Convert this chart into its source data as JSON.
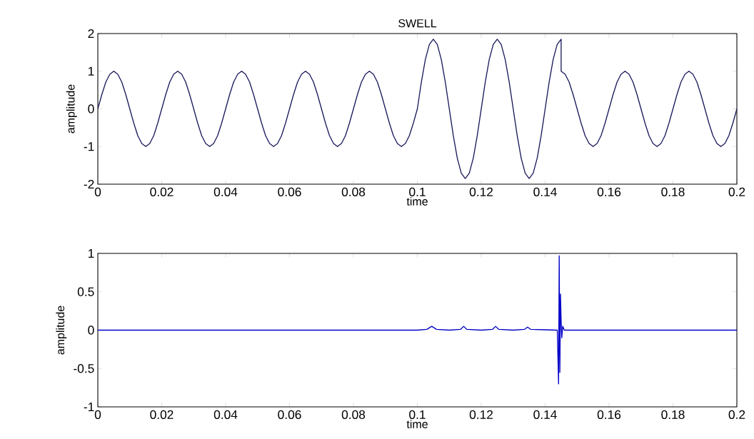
{
  "chart_data": [
    {
      "type": "line",
      "title": "SWELL",
      "xlabel": "time",
      "ylabel": "amplitude",
      "color": "#1a1a5c",
      "xlim": [
        0,
        0.2
      ],
      "ylim": [
        -2,
        2
      ],
      "xticks": [
        0,
        0.02,
        0.04,
        0.06,
        0.08,
        0.1,
        0.12,
        0.14,
        0.16,
        0.18,
        0.2
      ],
      "yticks": [
        -2,
        -1,
        0,
        1,
        2
      ],
      "x": [
        0,
        0.00125,
        0.0025,
        0.00375,
        0.005,
        0.00625,
        0.0075,
        0.00875,
        0.01,
        0.01125,
        0.0125,
        0.01375,
        0.015,
        0.01625,
        0.0175,
        0.01875,
        0.02,
        0.02125,
        0.0225,
        0.02375,
        0.025,
        0.02625,
        0.0275,
        0.02875,
        0.03,
        0.03125,
        0.0325,
        0.03375,
        0.035,
        0.03625,
        0.0375,
        0.03875,
        0.04,
        0.04125,
        0.0425,
        0.04375,
        0.045,
        0.04625,
        0.0475,
        0.04875,
        0.05,
        0.05125,
        0.0525,
        0.05375,
        0.055,
        0.05625,
        0.0575,
        0.05875,
        0.06,
        0.06125,
        0.0625,
        0.06375,
        0.065,
        0.06625,
        0.0675,
        0.06875,
        0.07,
        0.07125,
        0.0725,
        0.07375,
        0.075,
        0.07625,
        0.0775,
        0.07875,
        0.08,
        0.08125,
        0.0825,
        0.08375,
        0.085,
        0.08625,
        0.0875,
        0.08875,
        0.09,
        0.09125,
        0.0925,
        0.09375,
        0.095,
        0.09625,
        0.0975,
        0.09875,
        0.1,
        0.10125,
        0.1025,
        0.10375,
        0.105,
        0.10625,
        0.1075,
        0.10875,
        0.11,
        0.11125,
        0.1125,
        0.11375,
        0.115,
        0.11625,
        0.1175,
        0.11875,
        0.12,
        0.12125,
        0.1225,
        0.12375,
        0.125,
        0.12625,
        0.1275,
        0.12875,
        0.13,
        0.13125,
        0.1325,
        0.13375,
        0.135,
        0.13625,
        0.1375,
        0.13875,
        0.14,
        0.14125,
        0.1425,
        0.14375,
        0.145,
        0.145,
        0.14625,
        0.1475,
        0.14875,
        0.15,
        0.15125,
        0.1525,
        0.15375,
        0.155,
        0.15625,
        0.1575,
        0.15875,
        0.16,
        0.16125,
        0.1625,
        0.16375,
        0.165,
        0.16625,
        0.1675,
        0.16875,
        0.17,
        0.17125,
        0.1725,
        0.17375,
        0.175,
        0.17625,
        0.1775,
        0.17875,
        0.18,
        0.18125,
        0.1825,
        0.18375,
        0.185,
        0.18625,
        0.1875,
        0.18875,
        0.19,
        0.19125,
        0.1925,
        0.19375,
        0.195,
        0.19625,
        0.1975,
        0.19875,
        0.2
      ],
      "values": [
        0,
        0.38,
        0.71,
        0.92,
        1,
        0.92,
        0.71,
        0.38,
        0,
        -0.38,
        -0.71,
        -0.92,
        -1,
        -0.92,
        -0.71,
        -0.38,
        0,
        0.38,
        0.71,
        0.92,
        1,
        0.92,
        0.71,
        0.38,
        0,
        -0.38,
        -0.71,
        -0.92,
        -1,
        -0.92,
        -0.71,
        -0.38,
        0,
        0.38,
        0.71,
        0.92,
        1,
        0.92,
        0.71,
        0.38,
        0,
        -0.38,
        -0.71,
        -0.92,
        -1,
        -0.92,
        -0.71,
        -0.38,
        0,
        0.38,
        0.71,
        0.92,
        1,
        0.92,
        0.71,
        0.38,
        0,
        -0.38,
        -0.71,
        -0.92,
        -1,
        -0.92,
        -0.71,
        -0.38,
        0,
        0.38,
        0.71,
        0.92,
        1,
        0.92,
        0.71,
        0.38,
        0,
        -0.38,
        -0.71,
        -0.92,
        -1,
        -0.92,
        -0.71,
        -0.38,
        0,
        0.71,
        1.31,
        1.71,
        1.85,
        1.71,
        1.31,
        0.71,
        0,
        -0.71,
        -1.31,
        -1.71,
        -1.85,
        -1.71,
        -1.31,
        -0.71,
        0,
        0.71,
        1.31,
        1.71,
        1.85,
        1.71,
        1.31,
        0.71,
        0,
        -0.71,
        -1.31,
        -1.71,
        -1.85,
        -1.71,
        -1.31,
        -0.71,
        0,
        0.71,
        1.31,
        1.71,
        1.85,
        1,
        0.92,
        0.71,
        0.38,
        0,
        -0.38,
        -0.71,
        -0.92,
        -1,
        -0.92,
        -0.71,
        -0.38,
        0,
        0.38,
        0.71,
        0.92,
        1,
        0.92,
        0.71,
        0.38,
        0,
        -0.38,
        -0.71,
        -0.92,
        -1,
        -0.92,
        -0.71,
        -0.38,
        0,
        0.38,
        0.71,
        0.92,
        1,
        0.92,
        0.71,
        0.38,
        0,
        -0.38,
        -0.71,
        -0.92,
        -1,
        -0.92,
        -0.71,
        -0.38,
        0
      ]
    },
    {
      "type": "line",
      "xlabel": "time",
      "ylabel": "amplitude",
      "color": "#0000c8",
      "xlim": [
        0,
        0.2
      ],
      "ylim": [
        -1,
        1
      ],
      "xticks": [
        0,
        0.02,
        0.04,
        0.06,
        0.08,
        0.1,
        0.12,
        0.14,
        0.16,
        0.18,
        0.2
      ],
      "yticks": [
        -1,
        -0.5,
        0,
        0.5,
        1
      ],
      "x": [
        0,
        0.1,
        0.103,
        0.1045,
        0.106,
        0.11,
        0.1135,
        0.1145,
        0.1155,
        0.12,
        0.1235,
        0.1245,
        0.1255,
        0.13,
        0.1335,
        0.1345,
        0.1355,
        0.1438,
        0.1442,
        0.1444,
        0.1446,
        0.1448,
        0.145,
        0.1452,
        0.1455,
        0.146,
        0.2
      ],
      "values": [
        0,
        0,
        0.01,
        0.05,
        0.01,
        0,
        0.01,
        0.05,
        0.01,
        0,
        0.01,
        0.05,
        0.01,
        0,
        0.01,
        0.04,
        0.01,
        0,
        -0.7,
        0.97,
        -0.55,
        0.47,
        0.12,
        -0.1,
        0.05,
        0,
        0
      ]
    }
  ]
}
